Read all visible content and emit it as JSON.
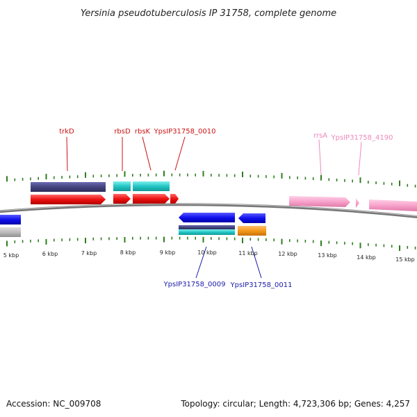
{
  "title": "Yersinia pseudotuberculosis IP 31758, complete genome",
  "footer": {
    "accession": "Accession: NC_009708",
    "summary": "Topology: circular; Length: 4,723,306 bp; Genes: 4,257"
  },
  "colors": {
    "backbone": "#8a8a8a",
    "tick": "#2e7d1f",
    "label_top": "#cc1111",
    "label_rna": "#ee88bb",
    "label_bottom": "#1a1aaa"
  },
  "scale_labels": [
    "5 kbp",
    "6 kbp",
    "7 kbp",
    "8 kbp",
    "9 kbp",
    "10 kbp",
    "11 kbp",
    "12 kbp",
    "13 kbp",
    "14 kbp",
    "15 kbp"
  ],
  "gene_labels": {
    "top": [
      {
        "id": "trkD",
        "text": "trkD",
        "color": "#cc1111"
      },
      {
        "id": "rbsD",
        "text": "rbsD",
        "color": "#cc1111"
      },
      {
        "id": "rbsK",
        "text": "rbsK",
        "color": "#cc1111"
      },
      {
        "id": "ypsip31758-0010",
        "text": "YpsIP31758_0010",
        "color": "#cc1111"
      },
      {
        "id": "rrsA",
        "text": "rrsA",
        "color": "#ee88bb"
      },
      {
        "id": "ypsip31758-4190",
        "text": "YpsIP31758_4190",
        "color": "#ee88bb"
      }
    ],
    "bottom": [
      {
        "id": "ypsip31758-0009",
        "text": "YpsIP31758_0009",
        "color": "#1a1aaa"
      },
      {
        "id": "ypsip31758-0011",
        "text": "YpsIP31758_0011",
        "color": "#1a1aaa"
      }
    ]
  }
}
